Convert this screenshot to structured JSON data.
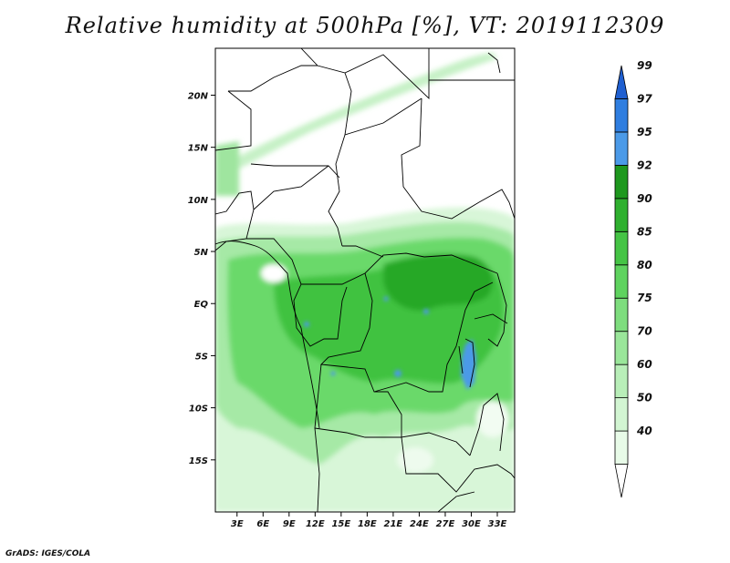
{
  "title": "Relative humidity at 500hPa [%], VT: 2019112309",
  "credit": "GrADS: IGES/COLA",
  "map": {
    "lat_ticks": [
      {
        "label": "20N",
        "lat": 20
      },
      {
        "label": "15N",
        "lat": 15
      },
      {
        "label": "10N",
        "lat": 10
      },
      {
        "label": "5N",
        "lat": 5
      },
      {
        "label": "EQ",
        "lat": 0
      },
      {
        "label": "5S",
        "lat": -5
      },
      {
        "label": "10S",
        "lat": -10
      },
      {
        "label": "15S",
        "lat": -15
      }
    ],
    "lon_ticks": [
      {
        "label": "3E",
        "lon": 3
      },
      {
        "label": "6E",
        "lon": 6
      },
      {
        "label": "9E",
        "lon": 9
      },
      {
        "label": "12E",
        "lon": 12
      },
      {
        "label": "15E",
        "lon": 15
      },
      {
        "label": "18E",
        "lon": 18
      },
      {
        "label": "21E",
        "lon": 21
      },
      {
        "label": "24E",
        "lon": 24
      },
      {
        "label": "27E",
        "lon": 27
      },
      {
        "label": "30E",
        "lon": 30
      },
      {
        "label": "33E",
        "lon": 33
      }
    ],
    "lon_range": [
      0.5,
      35
    ],
    "lat_range": [
      -20,
      24.5
    ]
  },
  "colorbar": {
    "bins": [
      {
        "label": "",
        "color": "#ffffff"
      },
      {
        "label": "40",
        "color": "#e8fbe8"
      },
      {
        "label": "50",
        "color": "#d2f5d2"
      },
      {
        "label": "60",
        "color": "#b8eeb8"
      },
      {
        "label": "70",
        "color": "#9ae69a"
      },
      {
        "label": "75",
        "color": "#7edd7e"
      },
      {
        "label": "80",
        "color": "#5fd35f"
      },
      {
        "label": "85",
        "color": "#45c445"
      },
      {
        "label": "90",
        "color": "#2fb02f"
      },
      {
        "label": "92",
        "color": "#1e981e"
      },
      {
        "label": "95",
        "color": "#4b9ae8"
      },
      {
        "label": "97",
        "color": "#2f7ee0"
      },
      {
        "label": "99",
        "color": "#1f5fd0"
      }
    ]
  }
}
